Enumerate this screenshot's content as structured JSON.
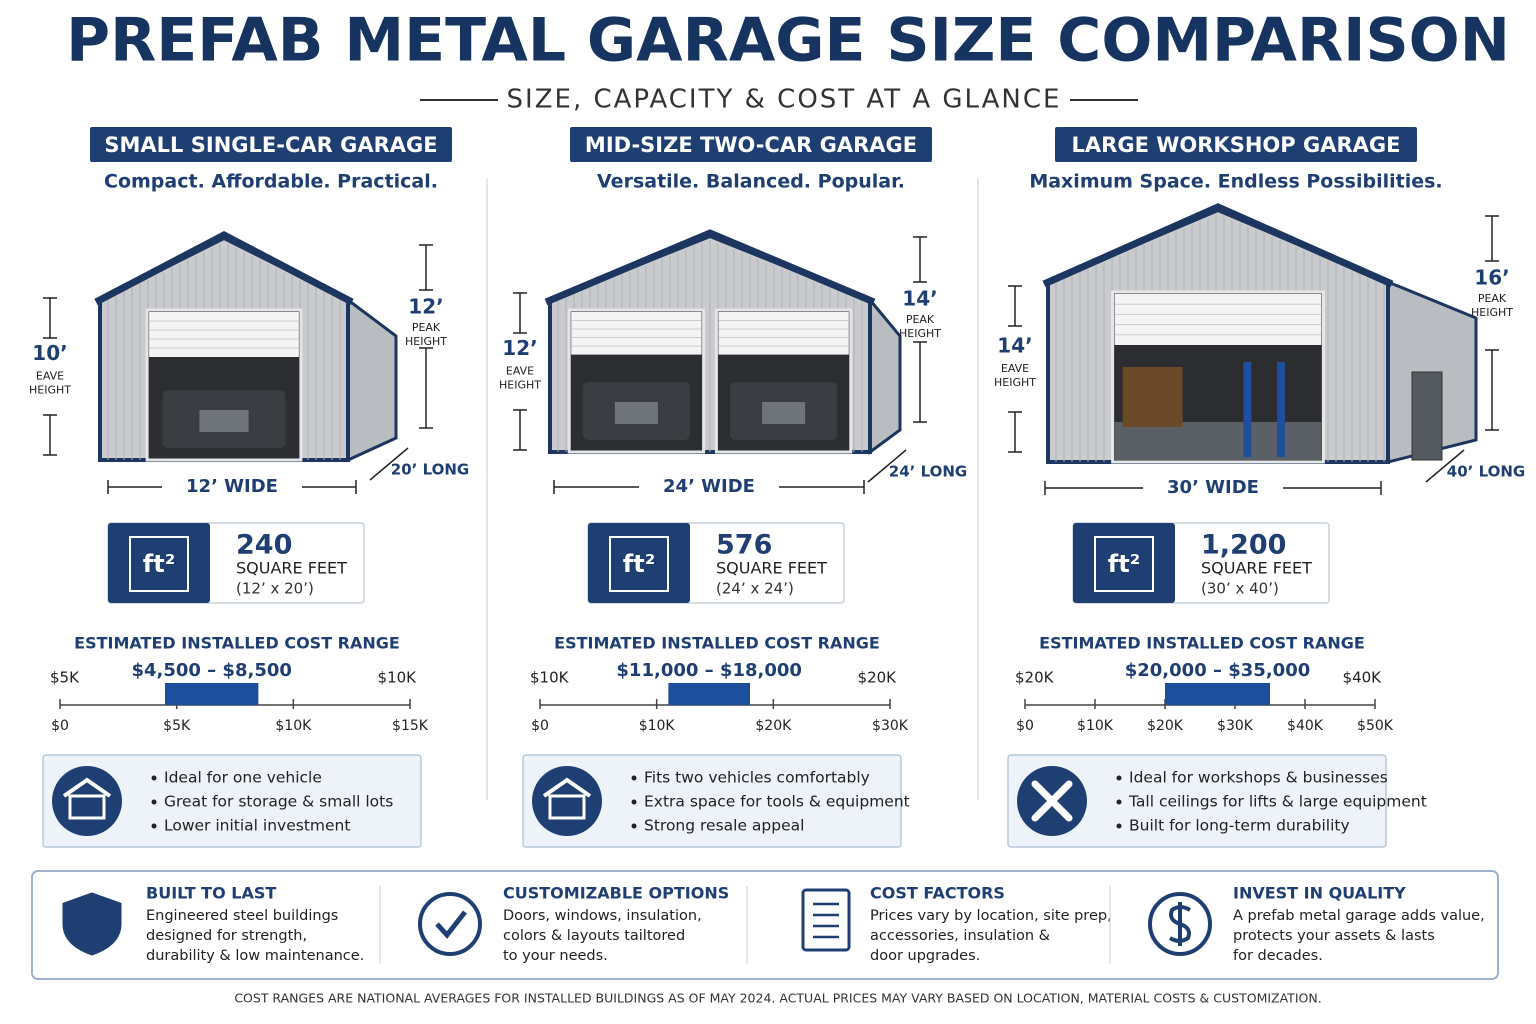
{
  "header": {
    "title": "PREFAB METAL GARAGE SIZE COMPARISON",
    "subtitle": "SIZE, CAPACITY & COST AT A GLANCE"
  },
  "columns": [
    {
      "title": "SMALL SINGLE-CAR GARAGE",
      "tagline": "Compact. Affordable. Practical.",
      "dims": {
        "eave": "10’",
        "eave_label": [
          "EAVE",
          "HEIGHT"
        ],
        "peak": "12’",
        "peak_label": [
          "PEAK",
          "HEIGHT"
        ],
        "width": "12’ WIDE",
        "length": "20’ LONG"
      },
      "area": {
        "icon": "ft²",
        "value": "240",
        "unit": "SQUARE FEET",
        "dims": "(12’ x 20’)"
      },
      "cost": {
        "heading": "ESTIMATED INSTALLED COST RANGE",
        "range_label": "$4,500 – $8,500",
        "low": 4500,
        "high": 8500,
        "end_labels": [
          "$5K",
          "$10K"
        ],
        "xlim": [
          0,
          15000
        ],
        "xticks": [
          {
            "value": 0,
            "label": "$0"
          },
          {
            "value": 5000,
            "label": "$5K"
          },
          {
            "value": 10000,
            "label": "$10K"
          },
          {
            "value": 15000,
            "label": "$15K"
          }
        ]
      },
      "features": [
        "Ideal for one vehicle",
        "Great for storage & small lots",
        "Lower initial investment"
      ]
    },
    {
      "title": "MID-SIZE TWO-CAR GARAGE",
      "tagline": "Versatile. Balanced. Popular.",
      "dims": {
        "eave": "12’",
        "eave_label": [
          "EAVE",
          "HEIGHT"
        ],
        "peak": "14’",
        "peak_label": [
          "PEAK",
          "HEIGHT"
        ],
        "width": "24’ WIDE",
        "length": "24’ LONG"
      },
      "area": {
        "icon": "ft²",
        "value": "576",
        "unit": "SQUARE FEET",
        "dims": "(24’ x 24’)"
      },
      "cost": {
        "heading": "ESTIMATED INSTALLED COST RANGE",
        "range_label": "$11,000 – $18,000",
        "low": 11000,
        "high": 18000,
        "end_labels": [
          "$10K",
          "$20K"
        ],
        "xlim": [
          0,
          30000
        ],
        "xticks": [
          {
            "value": 0,
            "label": "$0"
          },
          {
            "value": 10000,
            "label": "$10K"
          },
          {
            "value": 20000,
            "label": "$20K"
          },
          {
            "value": 30000,
            "label": "$30K"
          }
        ]
      },
      "features": [
        "Fits two vehicles comfortably",
        "Extra space for tools & equipment",
        "Strong resale appeal"
      ]
    },
    {
      "title": "LARGE WORKSHOP GARAGE",
      "tagline": "Maximum Space. Endless Possibilities.",
      "dims": {
        "eave": "14’",
        "eave_label": [
          "EAVE",
          "HEIGHT"
        ],
        "peak": "16’",
        "peak_label": [
          "PEAK",
          "HEIGHT"
        ],
        "width": "30’ WIDE",
        "length": "40’ LONG"
      },
      "area": {
        "icon": "ft²",
        "value": "1,200",
        "unit": "SQUARE FEET",
        "dims": "(30’ x 40’)"
      },
      "cost": {
        "heading": "ESTIMATED INSTALLED COST RANGE",
        "range_label": "$20,000 – $35,000",
        "low": 20000,
        "high": 35000,
        "end_labels": [
          "$20K",
          "$40K"
        ],
        "xlim": [
          0,
          50000
        ],
        "xticks": [
          {
            "value": 0,
            "label": "$0"
          },
          {
            "value": 10000,
            "label": "$10K"
          },
          {
            "value": 20000,
            "label": "$20K"
          },
          {
            "value": 30000,
            "label": "$30K"
          },
          {
            "value": 40000,
            "label": "$40K"
          },
          {
            "value": 50000,
            "label": "$50K"
          }
        ]
      },
      "features": [
        "Ideal for workshops & businesses",
        "Tall ceilings for lifts & large equipment",
        "Built for long-term durability"
      ]
    }
  ],
  "footer": {
    "items": [
      {
        "title": "BUILT TO LAST",
        "lines": [
          "Engineered steel buildings",
          "designed for strength,",
          "durability & low maintenance."
        ]
      },
      {
        "title": "CUSTOMIZABLE OPTIONS",
        "lines": [
          "Doors, windows, insulation,",
          "colors & layouts tailtored",
          "to your needs."
        ]
      },
      {
        "title": "COST FACTORS",
        "lines": [
          "Prices vary by location, site prep,",
          "accessories, insulation &",
          "door upgrades."
        ]
      },
      {
        "title": "INVEST IN QUALITY",
        "lines": [
          "A prefab metal garage adds value,",
          "protects your assets & lasts",
          "for decades."
        ]
      }
    ],
    "note": "COST RANGES ARE NATIONAL AVERAGES FOR INSTALLED BUILDINGS AS OF MAY 2024.  ACTUAL PRICES MAY VARY BASED ON LOCATION, MATERIAL COSTS & CUSTOMIZATION."
  }
}
